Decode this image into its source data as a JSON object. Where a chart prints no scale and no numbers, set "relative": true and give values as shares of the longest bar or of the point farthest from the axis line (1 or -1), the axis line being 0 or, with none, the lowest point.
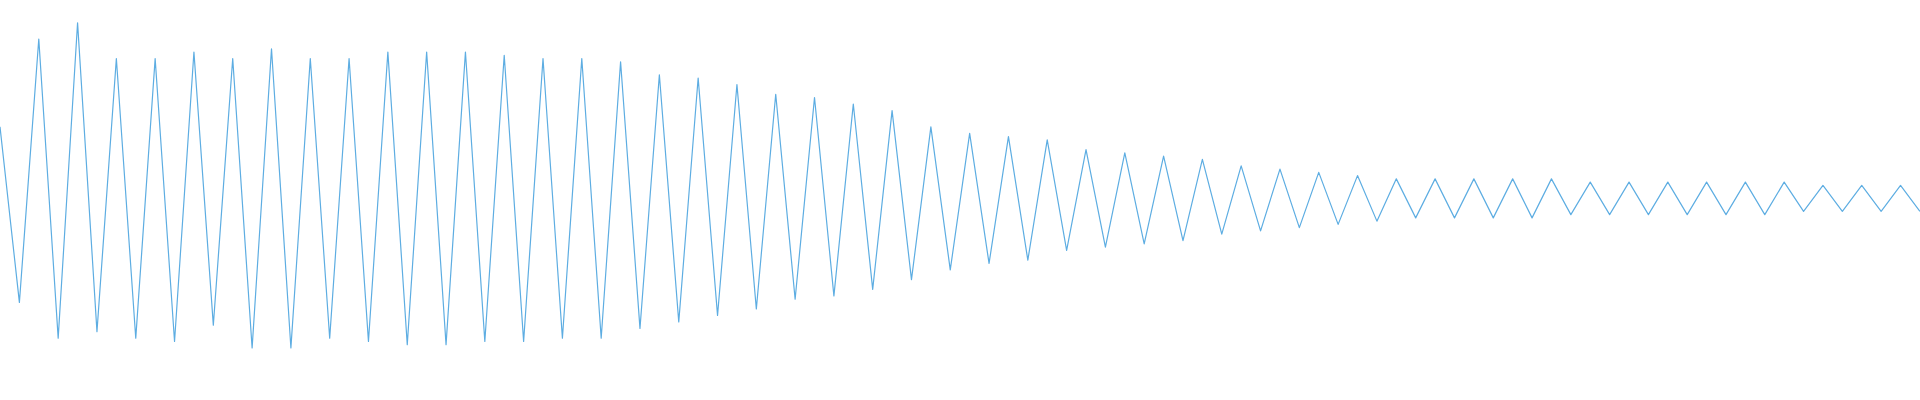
{
  "chart_data": {
    "type": "line",
    "relative": true,
    "categories": [
      null,
      null,
      null,
      null,
      null,
      null,
      null,
      null,
      null,
      null,
      null,
      null,
      null,
      null,
      null,
      null,
      null,
      null,
      null,
      null,
      null,
      null,
      null,
      null,
      null,
      null,
      null,
      null,
      null,
      null,
      null,
      null,
      null,
      null,
      null,
      null,
      null,
      null,
      null,
      null,
      null,
      null,
      null,
      null,
      null,
      null,
      null,
      null,
      null,
      null,
      null,
      null,
      null,
      null,
      null,
      null,
      null,
      null,
      null,
      null,
      null,
      null,
      null,
      null,
      null,
      null,
      null,
      null,
      null,
      null,
      null,
      null,
      null,
      null,
      null,
      null,
      null,
      null,
      null,
      null,
      null,
      null,
      null,
      null,
      null,
      null,
      null,
      null,
      null,
      null,
      null,
      null,
      null,
      null,
      null,
      null,
      null,
      null,
      null,
      null
    ],
    "series": [
      {
        "color": "#5dade2",
        "values": [
          0.68,
          0.14,
          0.95,
          0.03,
          1,
          0.05,
          0.89,
          0.03,
          0.89,
          0.02,
          0.91,
          0.07,
          0.89,
          0,
          0.92,
          0,
          0.89,
          0.03,
          0.89,
          0.02,
          0.91,
          0.01,
          0.91,
          0.01,
          0.91,
          0.02,
          0.9,
          0.02,
          0.89,
          0.03,
          0.89,
          0.03,
          0.88,
          0.06,
          0.84,
          0.08,
          0.83,
          0.1,
          0.81,
          0.12,
          0.78,
          0.15,
          0.77,
          0.16,
          0.75,
          0.18,
          0.73,
          0.21,
          0.68,
          0.24,
          0.66,
          0.26,
          0.65,
          0.27,
          0.64,
          0.3,
          0.61,
          0.31,
          0.6,
          0.32,
          0.59,
          0.33,
          0.58,
          0.35,
          0.56,
          0.36,
          0.55,
          0.37,
          0.54,
          0.38,
          0.53,
          0.39,
          0.52,
          0.4,
          0.52,
          0.4,
          0.52,
          0.4,
          0.52,
          0.4,
          0.52,
          0.41,
          0.51,
          0.41,
          0.51,
          0.41,
          0.51,
          0.41,
          0.51,
          0.41,
          0.51,
          0.41,
          0.51,
          0.42,
          0.5,
          0.42,
          0.5,
          0.42,
          0.5,
          0.42
        ]
      }
    ]
  }
}
